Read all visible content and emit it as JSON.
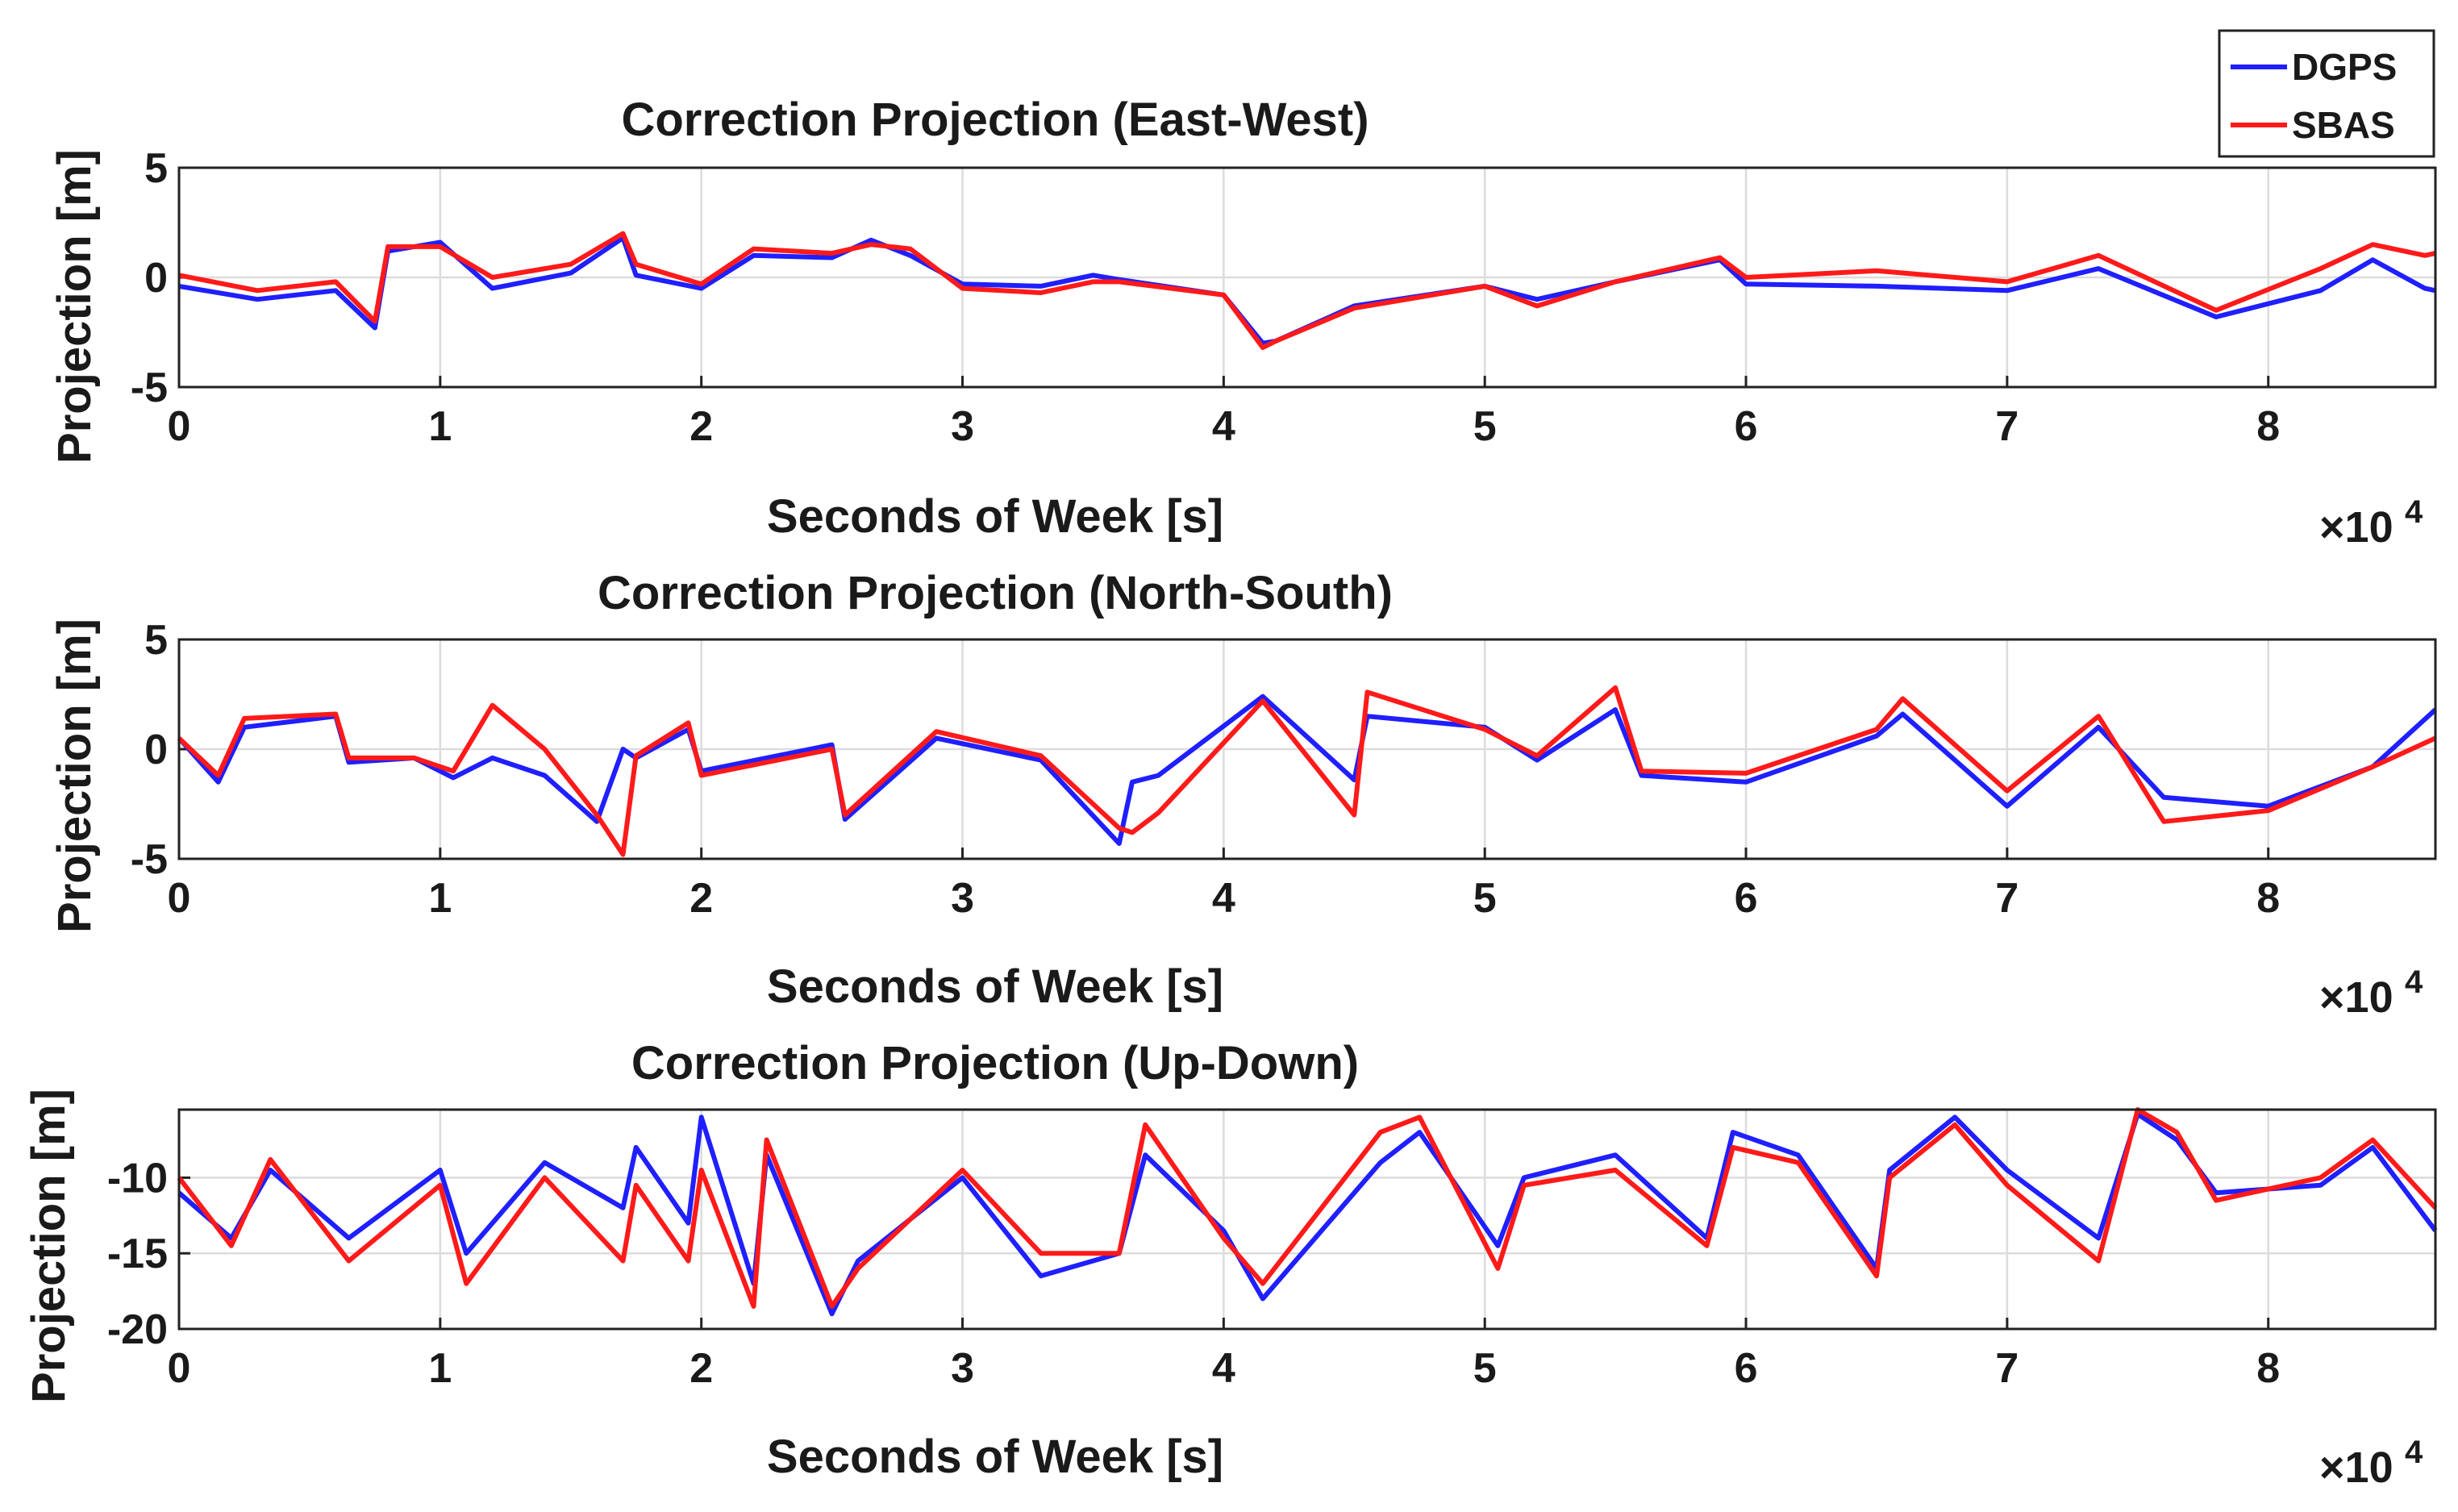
{
  "chart_data": [
    {
      "type": "line",
      "title": "Correction Projection (East-West)",
      "xlabel": "Seconds of Week [s]",
      "ylabel": "Projection [m]",
      "x_exponent_base": "×10",
      "x_exponent_power": "4",
      "xlim": [
        0,
        8.64
      ],
      "ylim": [
        -5,
        5
      ],
      "xticks": [
        0,
        1,
        2,
        3,
        4,
        5,
        6,
        7,
        8
      ],
      "yticks": [
        -5,
        0,
        5
      ],
      "grid": true,
      "x": [
        0,
        0.3,
        0.6,
        0.75,
        0.8,
        1.0,
        1.2,
        1.5,
        1.7,
        1.75,
        2.0,
        2.2,
        2.5,
        2.65,
        2.8,
        3.0,
        3.3,
        3.5,
        3.6,
        4.0,
        4.15,
        4.2,
        4.5,
        5.0,
        5.2,
        5.5,
        5.9,
        6.0,
        6.5,
        7.0,
        7.35,
        7.8,
        8.2,
        8.4,
        8.6,
        8.64
      ],
      "series": [
        {
          "name": "DGPS",
          "color": "#1f1fff",
          "values": [
            -0.4,
            -1.0,
            -0.6,
            -2.3,
            1.2,
            1.6,
            -0.5,
            0.2,
            1.8,
            0.1,
            -0.5,
            1.0,
            0.9,
            1.7,
            1.0,
            -0.3,
            -0.4,
            0.1,
            -0.1,
            -0.8,
            -3.0,
            -2.9,
            -1.3,
            -0.4,
            -1.0,
            -0.2,
            0.8,
            -0.3,
            -0.4,
            -0.6,
            0.4,
            -1.8,
            -0.6,
            0.8,
            -0.5,
            -0.6
          ]
        },
        {
          "name": "SBAS",
          "color": "#ff1a1a",
          "values": [
            0.1,
            -0.6,
            -0.2,
            -2.0,
            1.4,
            1.4,
            0.0,
            0.6,
            2.0,
            0.6,
            -0.3,
            1.3,
            1.1,
            1.5,
            1.3,
            -0.5,
            -0.7,
            -0.2,
            -0.2,
            -0.8,
            -3.2,
            -2.9,
            -1.4,
            -0.4,
            -1.3,
            -0.2,
            0.9,
            0.0,
            0.3,
            -0.2,
            1.0,
            -1.5,
            0.4,
            1.5,
            1.0,
            1.1
          ]
        }
      ]
    },
    {
      "type": "line",
      "title": "Correction Projection (North-South)",
      "xlabel": "Seconds of Week [s]",
      "ylabel": "Projection [m]",
      "x_exponent_base": "×10",
      "x_exponent_power": "4",
      "xlim": [
        0,
        8.64
      ],
      "ylim": [
        -5,
        5
      ],
      "xticks": [
        0,
        1,
        2,
        3,
        4,
        5,
        6,
        7,
        8
      ],
      "yticks": [
        -5,
        0,
        5
      ],
      "grid": true,
      "x": [
        0,
        0.15,
        0.25,
        0.6,
        0.65,
        0.9,
        1.05,
        1.2,
        1.4,
        1.6,
        1.7,
        1.75,
        1.95,
        2.0,
        2.5,
        2.55,
        2.9,
        3.3,
        3.6,
        3.65,
        3.75,
        4.15,
        4.5,
        4.55,
        5.0,
        5.2,
        5.5,
        5.6,
        6.0,
        6.5,
        6.6,
        7.0,
        7.35,
        7.6,
        8.0,
        8.4,
        8.64
      ],
      "series": [
        {
          "name": "DGPS",
          "color": "#1f1fff",
          "values": [
            0.5,
            -1.5,
            1.0,
            1.5,
            -0.6,
            -0.4,
            -1.3,
            -0.4,
            -1.2,
            -3.3,
            0.0,
            -0.4,
            0.9,
            -1.0,
            0.2,
            -3.2,
            0.5,
            -0.5,
            -4.3,
            -1.5,
            -1.2,
            2.4,
            -1.4,
            1.5,
            1.0,
            -0.5,
            1.8,
            -1.2,
            -1.5,
            0.6,
            1.6,
            -2.6,
            1.0,
            -2.2,
            -2.6,
            -0.8,
            1.8
          ]
        },
        {
          "name": "SBAS",
          "color": "#ff1a1a",
          "values": [
            0.5,
            -1.2,
            1.4,
            1.6,
            -0.4,
            -0.4,
            -1.0,
            2.0,
            0.0,
            -3.0,
            -4.8,
            -0.3,
            1.2,
            -1.2,
            0.0,
            -3.0,
            0.8,
            -0.3,
            -3.6,
            -3.8,
            -2.9,
            2.2,
            -3.0,
            2.6,
            0.9,
            -0.3,
            2.8,
            -1.0,
            -1.1,
            0.9,
            2.3,
            -1.9,
            1.5,
            -3.3,
            -2.8,
            -0.8,
            0.5
          ]
        }
      ]
    },
    {
      "type": "line",
      "title": "Correction Projection (Up-Down)",
      "xlabel": "Seconds of Week [s]",
      "ylabel": "Projection [m]",
      "x_exponent_base": "×10",
      "x_exponent_power": "4",
      "xlim": [
        0,
        8.64
      ],
      "ylim": [
        -20,
        -5.5
      ],
      "xticks": [
        0,
        1,
        2,
        3,
        4,
        5,
        6,
        7,
        8
      ],
      "yticks": [
        -20,
        -15,
        -10
      ],
      "grid": true,
      "x": [
        0,
        0.2,
        0.35,
        0.65,
        1.0,
        1.1,
        1.4,
        1.7,
        1.75,
        1.95,
        2.0,
        2.2,
        2.25,
        2.5,
        2.6,
        3.0,
        3.3,
        3.6,
        3.7,
        4.0,
        4.15,
        4.6,
        4.75,
        5.05,
        5.15,
        5.5,
        5.85,
        5.95,
        6.2,
        6.5,
        6.55,
        6.8,
        7.0,
        7.35,
        7.5,
        7.65,
        7.8,
        8.2,
        8.4,
        8.64
      ],
      "series": [
        {
          "name": "DGPS",
          "color": "#1f1fff",
          "values": [
            -11.0,
            -14.0,
            -9.5,
            -14.0,
            -9.5,
            -15.0,
            -9.0,
            -12.0,
            -8.0,
            -13.0,
            -6.0,
            -17.0,
            -8.5,
            -19.0,
            -15.5,
            -10.0,
            -16.5,
            -15.0,
            -8.5,
            -13.5,
            -18.0,
            -9.0,
            -7.0,
            -14.5,
            -10.0,
            -8.5,
            -14.0,
            -7.0,
            -8.5,
            -16.0,
            -9.5,
            -6.0,
            -9.5,
            -14.0,
            -5.8,
            -7.5,
            -11.0,
            -10.5,
            -8.0,
            -13.5
          ]
        },
        {
          "name": "SBAS",
          "color": "#ff1a1a",
          "values": [
            -10.0,
            -14.5,
            -8.8,
            -15.5,
            -10.5,
            -17.0,
            -10.0,
            -15.5,
            -10.5,
            -15.5,
            -9.5,
            -18.5,
            -7.5,
            -18.5,
            -16.0,
            -9.5,
            -15.0,
            -15.0,
            -6.5,
            -14.0,
            -17.0,
            -7.0,
            -6.0,
            -16.0,
            -10.5,
            -9.5,
            -14.5,
            -8.0,
            -9.0,
            -16.5,
            -10.0,
            -6.5,
            -10.5,
            -15.5,
            -5.5,
            -7.0,
            -11.5,
            -10.0,
            -7.5,
            -12.0
          ]
        }
      ]
    }
  ],
  "legend": {
    "entries": [
      {
        "label": "DGPS",
        "color": "#1f1fff"
      },
      {
        "label": "SBAS",
        "color": "#ff1a1a"
      }
    ]
  }
}
